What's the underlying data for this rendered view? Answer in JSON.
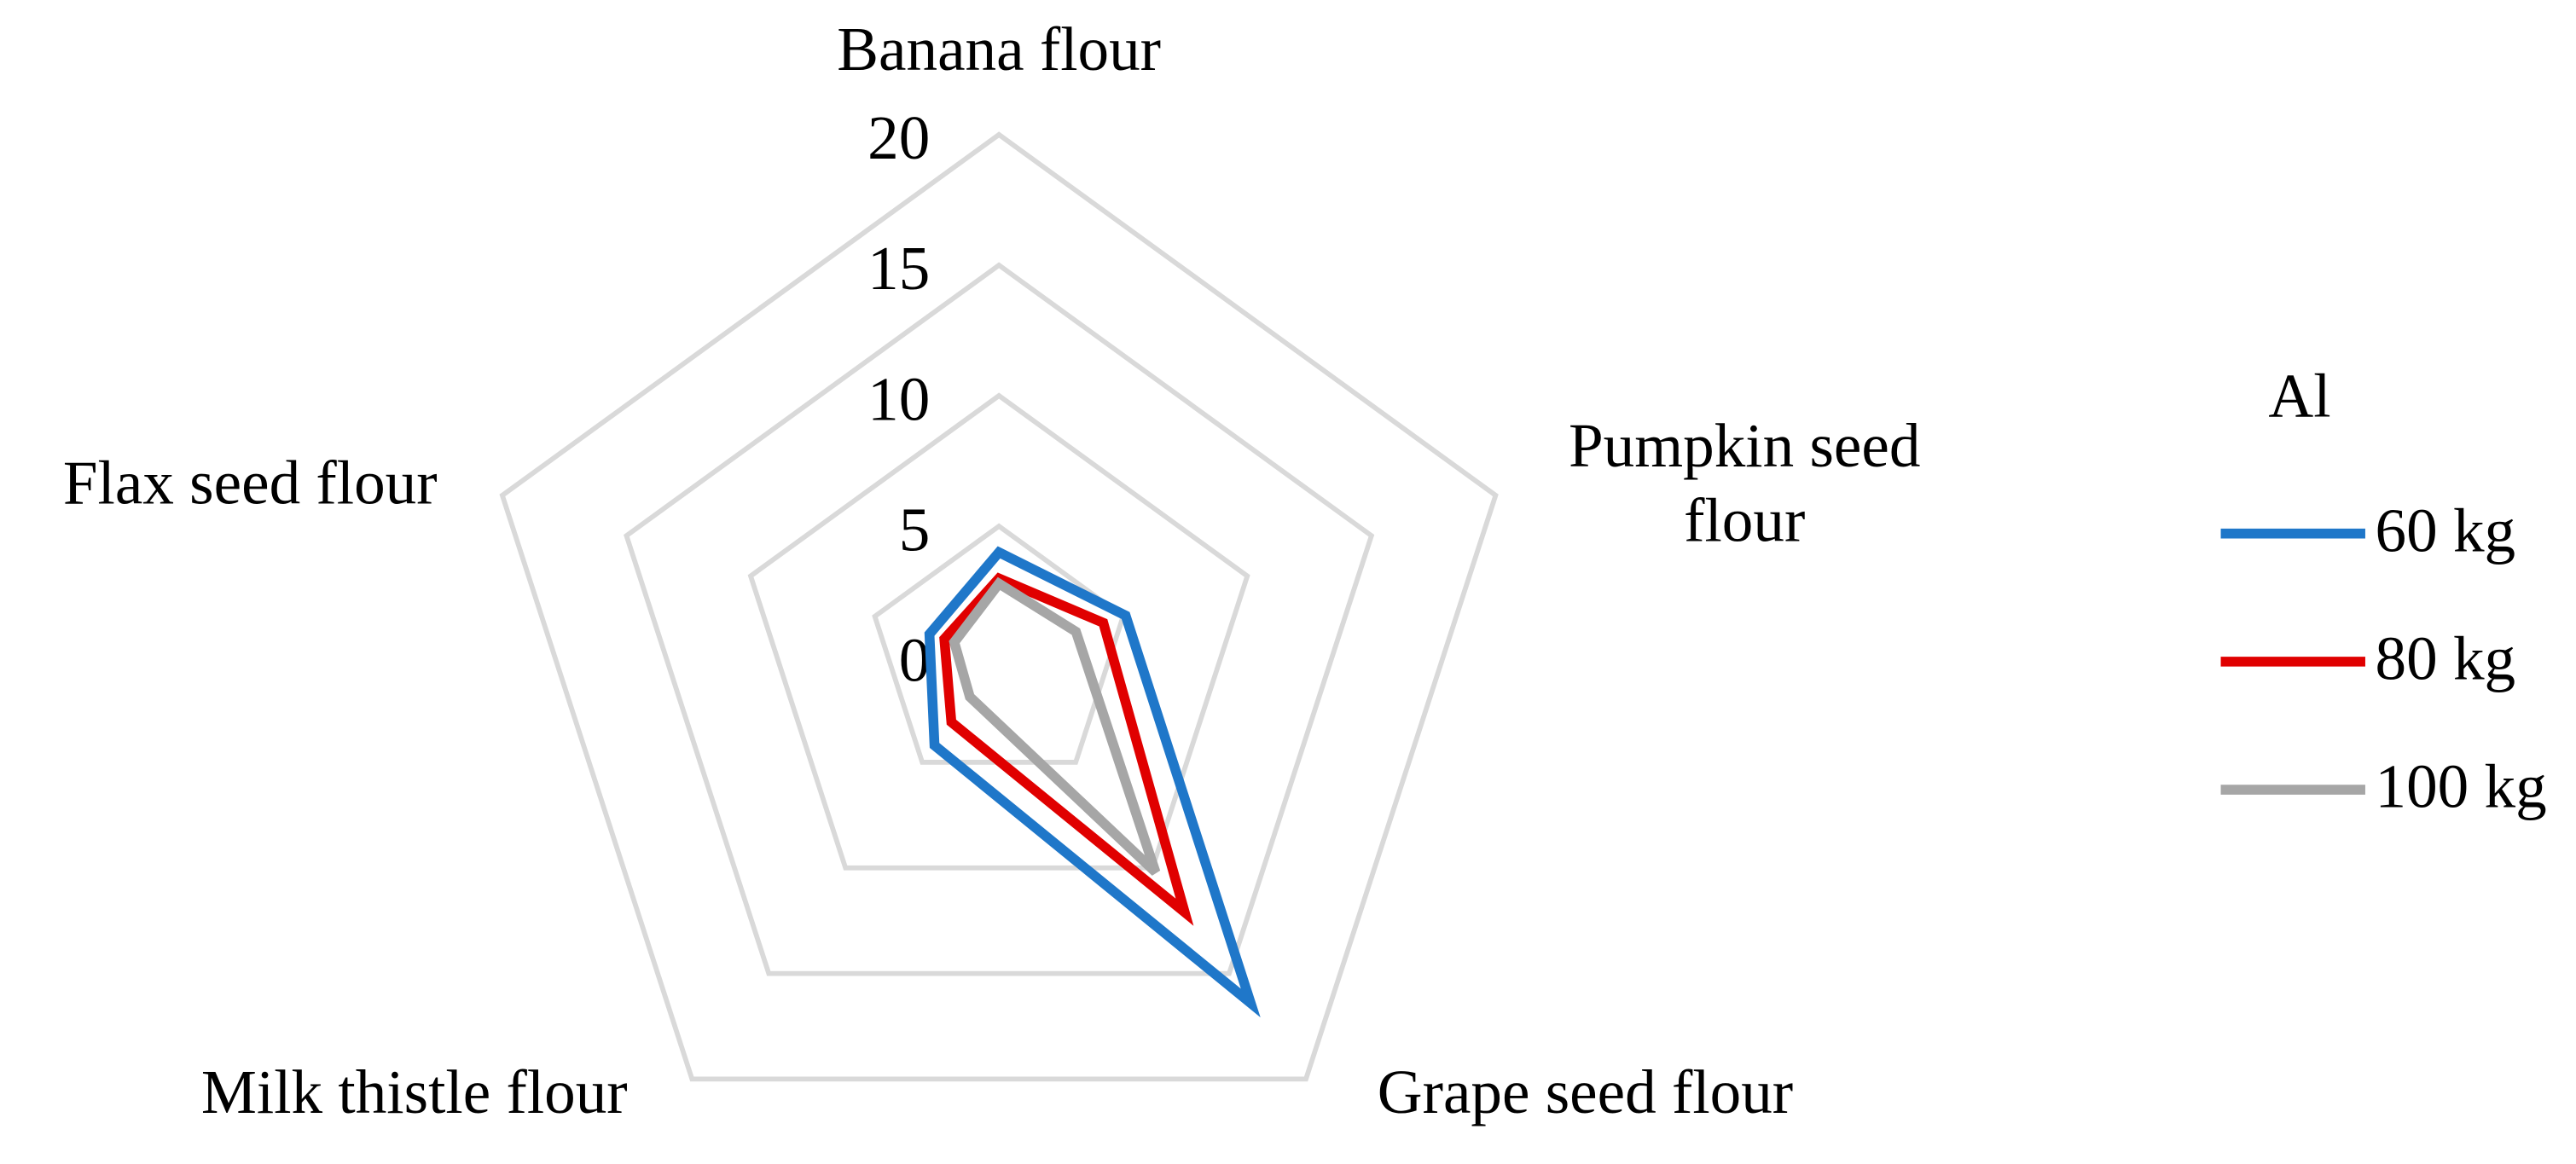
{
  "chart_data": {
    "type": "radar",
    "categories": [
      "Banana flour",
      "Pumpkin seed\nflour",
      "Grape seed flour",
      "Milk thistle flour",
      "Flax seed flour"
    ],
    "series": [
      {
        "name": "60 kg",
        "color": "#1f77c9",
        "values": [
          4.0,
          5.1,
          16.4,
          4.2,
          2.8
        ]
      },
      {
        "name": "80 kg",
        "color": "#e00000",
        "values": [
          3.0,
          4.2,
          12.1,
          3.1,
          2.2
        ]
      },
      {
        "name": "100 kg",
        "color": "#a6a6a6",
        "values": [
          2.8,
          3.1,
          10.2,
          1.9,
          1.8
        ]
      }
    ],
    "legend_title": "Al",
    "ylim": [
      0,
      20
    ],
    "yticks": [
      0,
      5,
      10,
      15,
      20
    ],
    "grid": true,
    "legend": "right"
  }
}
